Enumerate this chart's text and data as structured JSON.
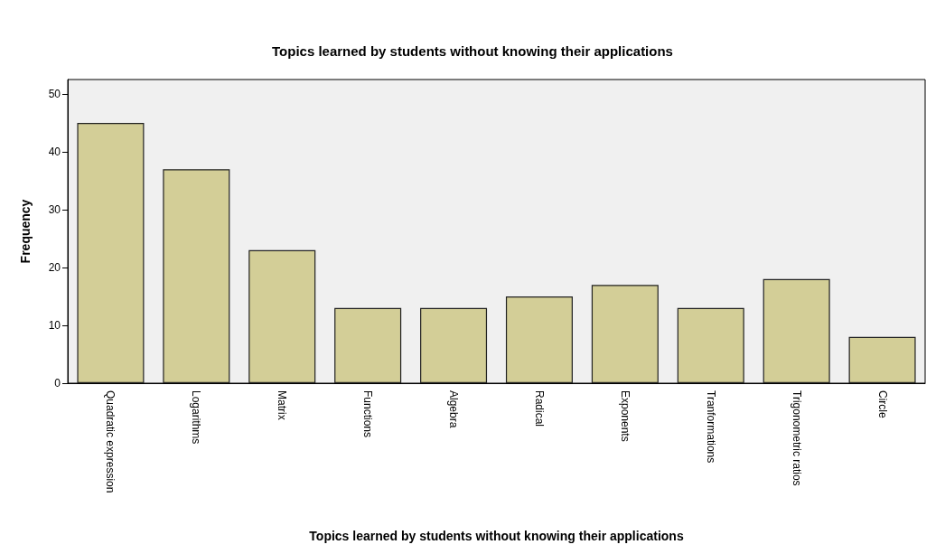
{
  "chart_data": {
    "type": "bar",
    "title": "Topics learned by students without knowing their applications",
    "xlabel": "Topics learned by students without knowing their applications",
    "ylabel": "Frequency",
    "categories": [
      "Quadratic expression",
      "Logarithms",
      "Matrix",
      "Functions",
      "Algebra",
      "Radical",
      "Exponents",
      "Tranformations",
      "Trigonometric ratios",
      "Circle"
    ],
    "values": [
      45,
      37,
      23,
      13,
      13,
      15,
      17,
      13,
      18,
      8
    ],
    "color": "#d3ce97",
    "ylim": [
      0,
      52.5
    ],
    "yticks": [
      0,
      10,
      20,
      30,
      40,
      50
    ],
    "grid": false
  }
}
